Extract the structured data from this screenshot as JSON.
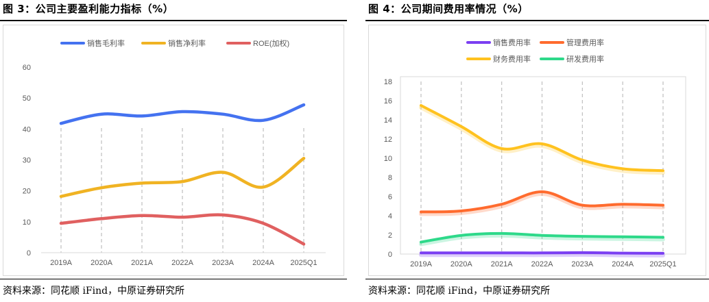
{
  "panels": [
    {
      "figure_title": "图 3：公司主要盈利能力指标（%）",
      "source": "资料来源：同花顺 iFind，中原证券研究所"
    },
    {
      "figure_title": "图 4：公司期间费用率情况（%）",
      "source": "资料来源：同花顺 iFind，中原证券研究所"
    }
  ],
  "chart_data": [
    {
      "type": "line",
      "title": "",
      "x": [
        "2019A",
        "2020A",
        "2021A",
        "2022A",
        "2023A",
        "2024A",
        "2025Q1"
      ],
      "ylim": [
        0,
        60
      ],
      "yticks": [
        0,
        10,
        20,
        30,
        40,
        50,
        60
      ],
      "grid": "vertical-dashed",
      "legend_position": "top",
      "smooth": true,
      "series": [
        {
          "name": "销售毛利率",
          "color": "#4472F0",
          "values": [
            41.8,
            44.8,
            44.2,
            45.6,
            44.8,
            42.8,
            47.8
          ]
        },
        {
          "name": "销售净利率",
          "color": "#F0B323",
          "values": [
            18.2,
            21.0,
            22.5,
            23.0,
            26.0,
            21.2,
            30.5
          ]
        },
        {
          "name": "ROE(加权)",
          "color": "#E06060",
          "values": [
            9.5,
            11.0,
            12.0,
            11.5,
            12.2,
            9.5,
            2.8
          ]
        }
      ]
    },
    {
      "type": "line",
      "title": "",
      "x": [
        "2019A",
        "2020A",
        "2021A",
        "2022A",
        "2023A",
        "2024A",
        "2025Q1"
      ],
      "ylim": [
        0,
        18
      ],
      "yticks": [
        0,
        2,
        4,
        6,
        8,
        10,
        12,
        14,
        16,
        18
      ],
      "grid": "vertical-dashed",
      "legend_position": "top",
      "smooth": true,
      "series": [
        {
          "name": "销售费用率",
          "color": "#7B3FF2",
          "values": [
            0.12,
            0.12,
            0.13,
            0.12,
            0.15,
            0.1,
            0.08
          ]
        },
        {
          "name": "管理费用率",
          "color": "#FF6B2E",
          "values": [
            4.4,
            4.5,
            5.2,
            6.5,
            5.1,
            5.2,
            5.1
          ]
        },
        {
          "name": "财务费用率",
          "color": "#FFC21F",
          "values": [
            15.5,
            13.3,
            11.0,
            11.5,
            9.8,
            8.9,
            8.7
          ]
        },
        {
          "name": "研发费用率",
          "color": "#2ED98A",
          "values": [
            1.25,
            1.95,
            2.15,
            1.95,
            1.85,
            1.8,
            1.75
          ]
        }
      ]
    }
  ]
}
